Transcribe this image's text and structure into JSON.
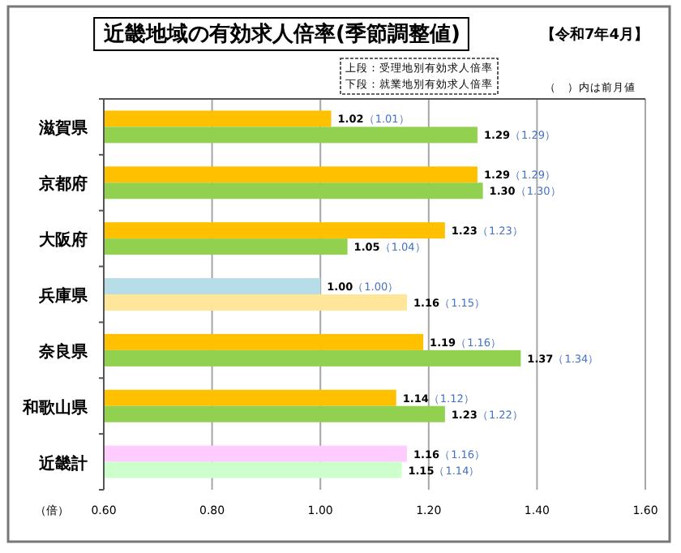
{
  "chart_data": {
    "type": "bar",
    "orientation": "horizontal",
    "title": "近畿地域の有効求人倍率(季節調整値)",
    "subtitle": "【令和7年4月】",
    "xlabel": "（倍）",
    "annotations": [
      "上段：受理地別有効求人倍率",
      "下段：就業地別有効求人倍率",
      "（　）内は前月値"
    ],
    "categories": [
      "滋賀県",
      "京都府",
      "大阪府",
      "兵庫県",
      "奈良県",
      "和歌山県",
      "近畿計"
    ],
    "series": [
      {
        "colors": [
          "#ffc000",
          "#ffc000",
          "#ffc000",
          "#b7dee8",
          "#ffc000",
          "#ffc000",
          "#ffccff"
        ],
        "values": [
          1.02,
          1.29,
          1.23,
          1.0,
          1.19,
          1.14,
          1.16
        ],
        "value_labels": [
          "1.02（1.01）",
          "1.29（1.29）",
          "1.23（1.23）",
          "1.00（1.00）",
          "1.19（1.16）",
          "1.14（1.12）",
          "1.16（1.16）"
        ]
      },
      {
        "colors": [
          "#92d050",
          "#92d050",
          "#92d050",
          "#ffe699",
          "#92d050",
          "#92d050",
          "#ccffcc"
        ],
        "values": [
          1.29,
          1.3,
          1.05,
          1.16,
          1.37,
          1.23,
          1.15
        ],
        "value_labels": [
          "1.29（1.29）",
          "1.30（1.30）",
          "1.05（1.04）",
          "1.16（1.15）",
          "1.37（1.34）",
          "1.23（1.22）",
          "1.15（1.14）"
        ]
      }
    ],
    "xlim": [
      0.6,
      1.6
    ],
    "xticks": [
      {
        "value": 0.6,
        "label": "0.60"
      },
      {
        "value": 0.8,
        "label": "0.80"
      },
      {
        "value": 1.0,
        "label": "1.00"
      },
      {
        "value": 1.2,
        "label": "1.20"
      },
      {
        "value": 1.4,
        "label": "1.40"
      },
      {
        "value": 1.6,
        "label": "1.60"
      }
    ],
    "grid": "x"
  }
}
